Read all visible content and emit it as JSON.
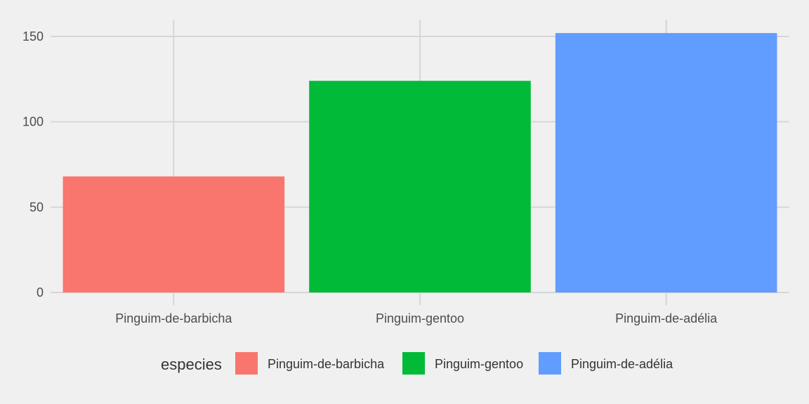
{
  "chart_data": {
    "type": "bar",
    "categories": [
      "Pinguim-de-barbicha",
      "Pinguim-gentoo",
      "Pinguim-de-adélia"
    ],
    "values": [
      68,
      124,
      152
    ],
    "colors": [
      "#f8766d",
      "#00ba38",
      "#619cff"
    ],
    "title": "",
    "xlabel": "",
    "ylabel": "",
    "ylim": [
      0,
      160
    ],
    "yticks": [
      0,
      50,
      100,
      150
    ],
    "grid": true,
    "legend": {
      "title": "especies",
      "position": "bottom",
      "entries": [
        "Pinguim-de-barbicha",
        "Pinguim-gentoo",
        "Pinguim-de-adélia"
      ]
    }
  }
}
